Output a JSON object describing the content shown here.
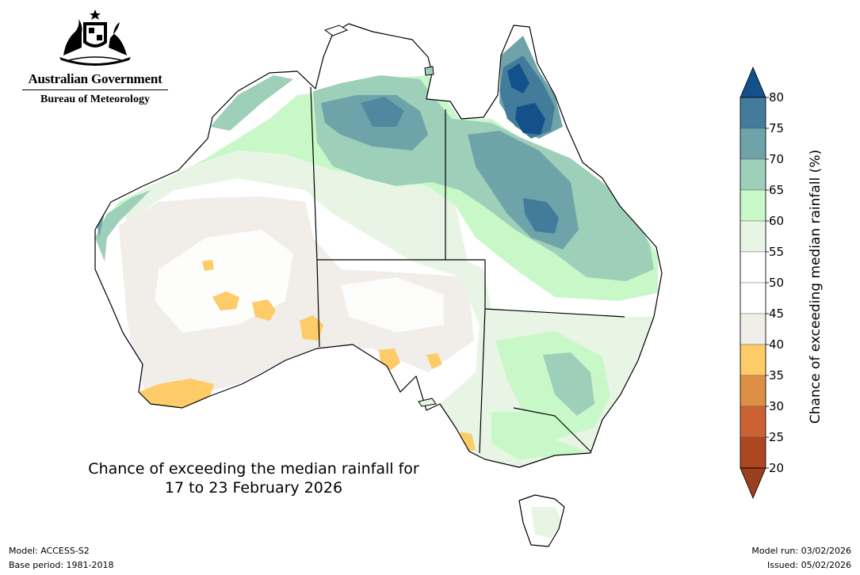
{
  "header": {
    "government_name": "Australian Government",
    "agency_name": "Bureau of Meteorology"
  },
  "map": {
    "title_line1": "Chance of exceeding the median rainfall for",
    "title_line2": "17 to 23 February 2026",
    "region": "Australia"
  },
  "colorbar": {
    "label": "Chance of exceeding median rainfall (%)",
    "ticks": [
      "20",
      "25",
      "30",
      "35",
      "40",
      "45",
      "50",
      "55",
      "60",
      "65",
      "70",
      "75",
      "80"
    ],
    "bands": [
      {
        "range": "below 20",
        "color": "#9a3e1c"
      },
      {
        "range": "20-25",
        "color": "#ad4721"
      },
      {
        "range": "25-30",
        "color": "#cc6133"
      },
      {
        "range": "30-35",
        "color": "#de8f46"
      },
      {
        "range": "35-40",
        "color": "#fdcb67"
      },
      {
        "range": "40-45",
        "color": "#f1ede8"
      },
      {
        "range": "45-50",
        "color": "#ffffff"
      },
      {
        "range": "50-55",
        "color": "#ffffff"
      },
      {
        "range": "55-60",
        "color": "#e8f5e5"
      },
      {
        "range": "60-65",
        "color": "#c8f8c8"
      },
      {
        "range": "65-70",
        "color": "#9ecfb8"
      },
      {
        "range": "70-75",
        "color": "#6fa3aa"
      },
      {
        "range": "75-80",
        "color": "#437c9b"
      },
      {
        "range": "above 80",
        "color": "#14508a"
      }
    ]
  },
  "footer": {
    "model": "Model: ACCESS-S2",
    "base_period": "Base period: 1981-2018",
    "model_run": "Model run: 03/02/2026",
    "issued": "Issued: 05/02/2026"
  }
}
